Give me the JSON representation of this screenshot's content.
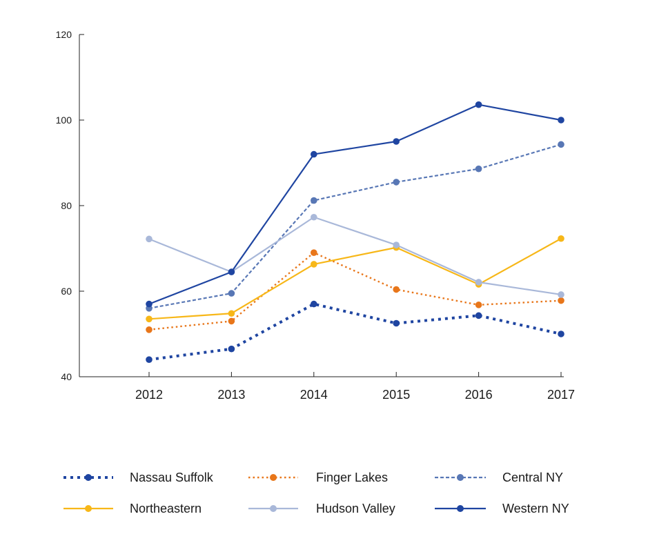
{
  "chart_data": {
    "type": "line",
    "title": "",
    "xlabel": "",
    "ylabel": "",
    "x": [
      "2012",
      "2013",
      "2014",
      "2015",
      "2016",
      "2017"
    ],
    "ylim": [
      40,
      120
    ],
    "yticks": [
      40,
      60,
      80,
      100,
      120
    ],
    "grid": false,
    "legend": "bottom",
    "series": [
      {
        "name": "Nassau Suffolk",
        "values": [
          44,
          46.5,
          57,
          52.5,
          54.3,
          50
        ],
        "color": "#1f45a1",
        "style": "dotted-heavy"
      },
      {
        "name": "Finger Lakes",
        "values": [
          51,
          53,
          69,
          60.4,
          56.8,
          57.8
        ],
        "color": "#e8761a",
        "style": "dotted"
      },
      {
        "name": "Central NY",
        "values": [
          56,
          59.5,
          81.2,
          85.5,
          88.6,
          94.3
        ],
        "color": "#5877b5",
        "style": "dashed"
      },
      {
        "name": "Northeastern",
        "values": [
          53.5,
          54.8,
          66.3,
          70.2,
          61.6,
          72.3
        ],
        "color": "#f7b718",
        "style": "solid"
      },
      {
        "name": "Hudson Valley",
        "values": [
          72.2,
          64.5,
          77.3,
          70.8,
          62.1,
          59.2
        ],
        "color": "#a9b8d9",
        "style": "solid"
      },
      {
        "name": "Western NY",
        "values": [
          57,
          64.5,
          92,
          95,
          103.6,
          100
        ],
        "color": "#1f45a1",
        "style": "solid"
      }
    ]
  }
}
